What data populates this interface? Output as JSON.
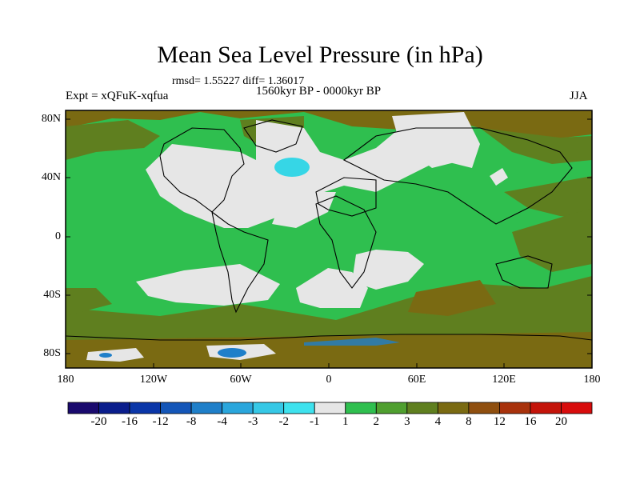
{
  "title": "Mean Sea Level Pressure (in hPa)",
  "stats_text": "rmsd= 1.55227 diff= 1.36017",
  "period": "1560kyr BP - 0000kyr BP",
  "expt_label": "Expt = xQFuK-xqfua",
  "season": "JJA",
  "lat_labels": [
    "80N",
    "40N",
    "0",
    "40S",
    "80S"
  ],
  "lon_labels": [
    "180",
    "120W",
    "60W",
    "0",
    "60E",
    "120E",
    "180"
  ],
  "colorbar": {
    "labels": [
      "-20",
      "-16",
      "-12",
      "-8",
      "-4",
      "-3",
      "-2",
      "-1",
      "1",
      "2",
      "3",
      "4",
      "8",
      "12",
      "16",
      "20"
    ],
    "colors": [
      "#1a0a6e",
      "#0a1d8c",
      "#0a36a8",
      "#1456b8",
      "#1f7fc9",
      "#2aa6dc",
      "#36c8e6",
      "#3ee2ee",
      "#e6e6e6",
      "#2fbf4f",
      "#4f9f2f",
      "#5f7f1f",
      "#7a6a12",
      "#8f4f0f",
      "#a8320c",
      "#c4140a",
      "#d80c0c"
    ]
  },
  "map_colors": {
    "land_green": "#2fbf4f",
    "neutral": "#e6e6e6",
    "olive": "#5f7f1f",
    "brown": "#7a6a12",
    "cyan": "#36d6e6",
    "blue": "#1f7fc9"
  },
  "icons": [
    "coastline-outline"
  ]
}
